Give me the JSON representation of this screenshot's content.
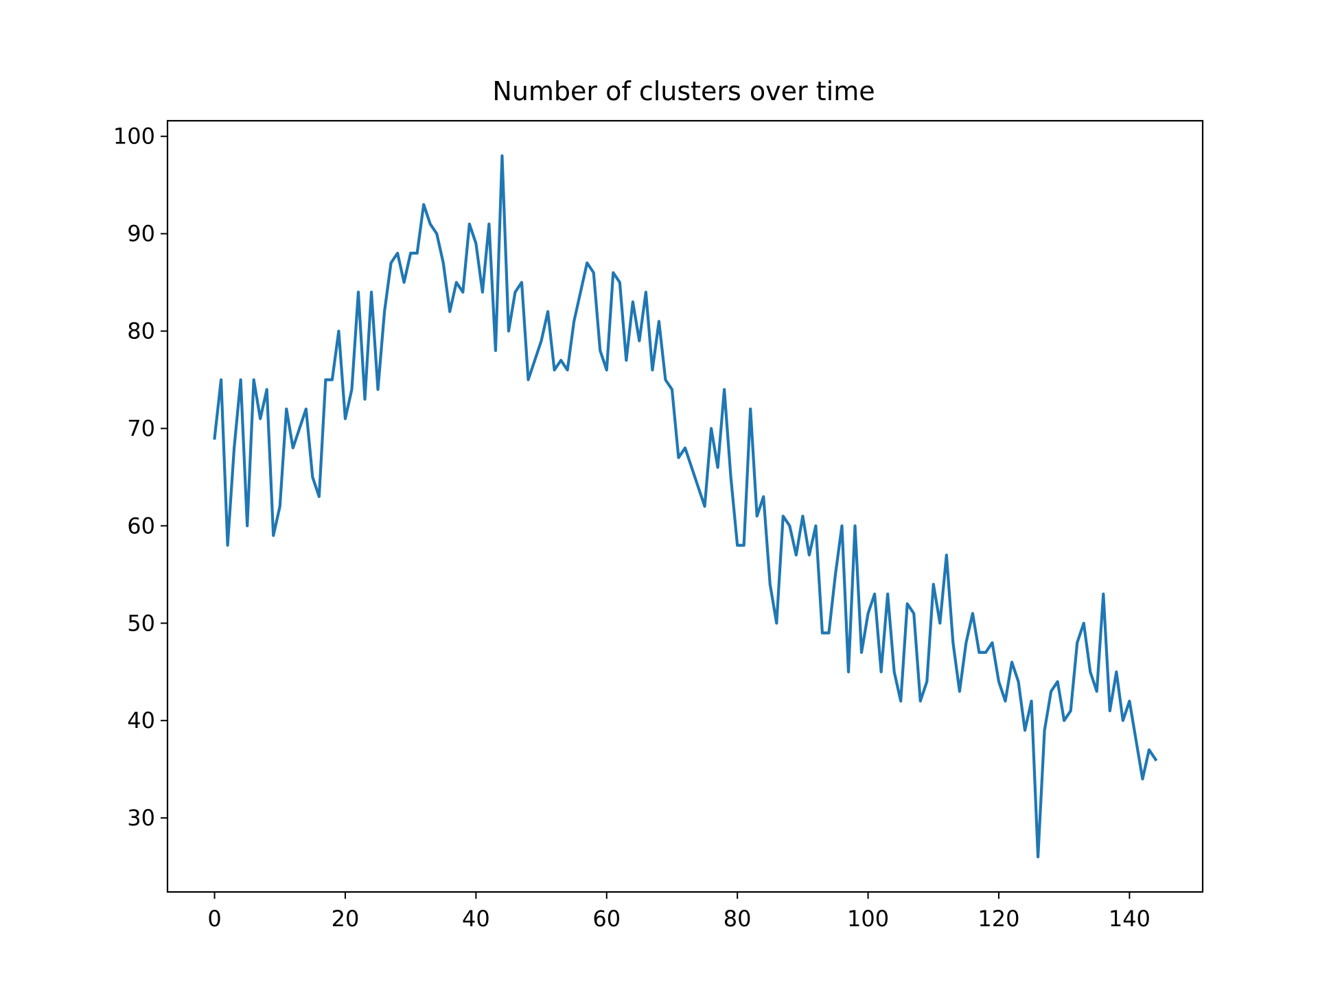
{
  "chart_data": {
    "type": "line",
    "title": "Number of clusters over time",
    "xlabel": "",
    "ylabel": "",
    "xlim": [
      -7.2,
      151.2
    ],
    "ylim": [
      22.4,
      101.6
    ],
    "xticks": [
      0,
      20,
      40,
      60,
      80,
      100,
      120,
      140
    ],
    "yticks": [
      30,
      40,
      50,
      60,
      70,
      80,
      90,
      100
    ],
    "grid": false,
    "legend": "none",
    "series": [
      {
        "color": "#1f77b4",
        "x": [
          0,
          1,
          2,
          3,
          4,
          5,
          6,
          7,
          8,
          9,
          10,
          11,
          12,
          13,
          14,
          15,
          16,
          17,
          18,
          19,
          20,
          21,
          22,
          23,
          24,
          25,
          26,
          27,
          28,
          29,
          30,
          31,
          32,
          33,
          34,
          35,
          36,
          37,
          38,
          39,
          40,
          41,
          42,
          43,
          44,
          45,
          46,
          47,
          48,
          49,
          50,
          51,
          52,
          53,
          54,
          55,
          56,
          57,
          58,
          59,
          60,
          61,
          62,
          63,
          64,
          65,
          66,
          67,
          68,
          69,
          70,
          71,
          72,
          73,
          74,
          75,
          76,
          77,
          78,
          79,
          80,
          81,
          82,
          83,
          84,
          85,
          86,
          87,
          88,
          89,
          90,
          91,
          92,
          93,
          94,
          95,
          96,
          97,
          98,
          99,
          100,
          101,
          102,
          103,
          104,
          105,
          106,
          107,
          108,
          109,
          110,
          111,
          112,
          113,
          114,
          115,
          116,
          117,
          118,
          119,
          120,
          121,
          122,
          123,
          124,
          125,
          126,
          127,
          128,
          129,
          130,
          131,
          132,
          133,
          134,
          135,
          136,
          137,
          138,
          139,
          140,
          141,
          142,
          143,
          144
        ],
        "values": [
          69,
          75,
          58,
          68,
          75,
          60,
          75,
          71,
          74,
          59,
          62,
          72,
          68,
          70,
          72,
          65,
          63,
          75,
          75,
          80,
          71,
          74,
          84,
          73,
          84,
          74,
          82,
          87,
          88,
          85,
          88,
          88,
          93,
          91,
          90,
          87,
          82,
          85,
          84,
          91,
          89,
          84,
          91,
          78,
          98,
          80,
          84,
          85,
          75,
          77,
          79,
          82,
          76,
          77,
          76,
          81,
          84,
          87,
          86,
          78,
          76,
          86,
          85,
          77,
          83,
          79,
          84,
          76,
          81,
          75,
          74,
          67,
          68,
          66,
          64,
          62,
          70,
          66,
          74,
          65,
          58,
          58,
          72,
          61,
          63,
          54,
          50,
          61,
          60,
          57,
          61,
          57,
          60,
          49,
          49,
          55,
          60,
          45,
          60,
          47,
          51,
          53,
          45,
          53,
          45,
          42,
          52,
          51,
          42,
          44,
          54,
          50,
          57,
          48,
          43,
          48,
          51,
          47,
          47,
          48,
          44,
          42,
          46,
          44,
          39,
          42,
          26,
          39,
          43,
          44,
          40,
          41,
          48,
          50,
          45,
          43,
          53,
          41,
          45,
          40,
          42,
          38,
          34,
          37,
          36
        ]
      }
    ]
  }
}
